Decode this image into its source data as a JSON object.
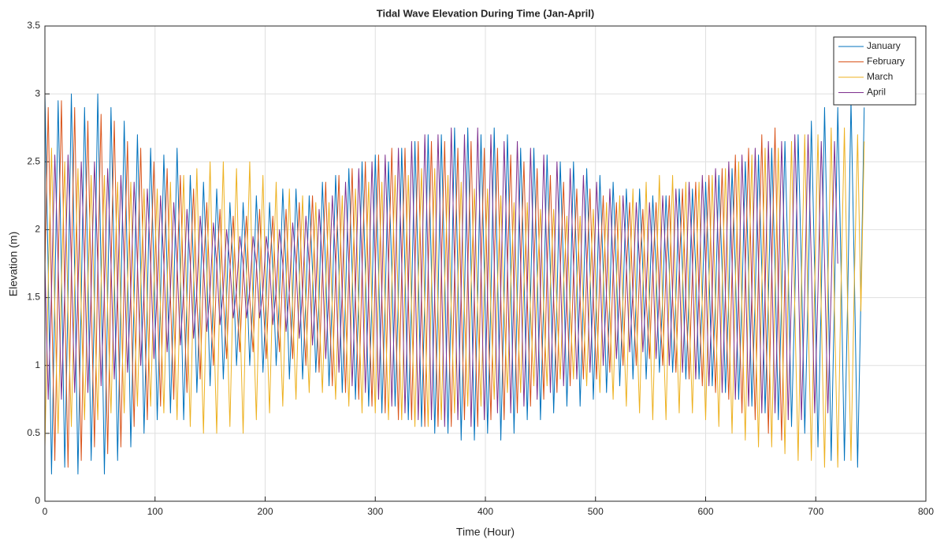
{
  "chart_data": {
    "type": "line",
    "title": "Tidal Wave Elevation During Time (Jan-April)",
    "x_label": "Time (Hour)",
    "y_label": "Elevation (m)",
    "xlim": [
      0,
      800
    ],
    "xticks": [
      0,
      100,
      200,
      300,
      400,
      500,
      600,
      700,
      800
    ],
    "ylim": [
      0,
      3.5
    ],
    "yticks": [
      0,
      0.5,
      1,
      1.5,
      2,
      2.5,
      3,
      3.5
    ],
    "grid": true,
    "legend": "upper-right",
    "x": [
      0,
      3,
      6,
      9,
      12,
      15,
      18,
      21,
      24,
      27,
      30,
      33,
      36,
      39,
      42,
      45,
      48,
      51,
      54,
      57,
      60,
      63,
      66,
      69,
      72,
      75,
      78,
      81,
      84,
      87,
      90,
      93,
      96,
      99,
      102,
      105,
      108,
      111,
      114,
      117,
      120,
      123,
      126,
      129,
      132,
      135,
      138,
      141,
      144,
      147,
      150,
      153,
      156,
      159,
      162,
      165,
      168,
      171,
      174,
      177,
      180,
      183,
      186,
      189,
      192,
      195,
      198,
      201,
      204,
      207,
      210,
      213,
      216,
      219,
      222,
      225,
      228,
      231,
      234,
      237,
      240,
      243,
      246,
      249,
      252,
      255,
      258,
      261,
      264,
      267,
      270,
      273,
      276,
      279,
      282,
      285,
      288,
      291,
      294,
      297,
      300,
      303,
      306,
      309,
      312,
      315,
      318,
      321,
      324,
      327,
      330,
      333,
      336,
      339,
      342,
      345,
      348,
      351,
      354,
      357,
      360,
      363,
      366,
      369,
      372,
      375,
      378,
      381,
      384,
      387,
      390,
      393,
      396,
      399,
      402,
      405,
      408,
      411,
      414,
      417,
      420,
      423,
      426,
      429,
      432,
      435,
      438,
      441,
      444,
      447,
      450,
      453,
      456,
      459,
      462,
      465,
      468,
      471,
      474,
      477,
      480,
      483,
      486,
      489,
      492,
      495,
      498,
      501,
      504,
      507,
      510,
      513,
      516,
      519,
      522,
      525,
      528,
      531,
      534,
      537,
      540,
      543,
      546,
      549,
      552,
      555,
      558,
      561,
      564,
      567,
      570,
      573,
      576,
      579,
      582,
      585,
      588,
      591,
      594,
      597,
      600,
      603,
      606,
      609,
      612,
      615,
      618,
      621,
      624,
      627,
      630,
      633,
      636,
      639,
      642,
      645,
      648,
      651,
      654,
      657,
      660,
      663,
      666,
      669,
      672,
      675,
      678,
      681,
      684,
      687,
      690,
      693,
      696,
      699,
      702,
      705,
      708,
      711,
      714,
      717,
      720,
      723,
      726,
      729,
      732,
      735,
      738,
      741,
      744
    ],
    "series": [
      {
        "name": "January",
        "color": "#0072BD",
        "values": [
          3,
          1.7,
          0.2,
          1.5,
          2.95,
          1.7,
          0.25,
          1.5,
          3,
          1.7,
          0.2,
          1.5,
          2.9,
          1.7,
          0.3,
          1.5,
          3,
          1.7,
          0.2,
          1.5,
          2.9,
          1.7,
          0.3,
          1.5,
          2.8,
          1.7,
          0.4,
          1.5,
          2.7,
          1.7,
          0.5,
          1.5,
          2.6,
          1.7,
          0.6,
          1.5,
          2.55,
          1.7,
          0.65,
          1.5,
          2.6,
          1.7,
          0.6,
          1.5,
          2.4,
          1.7,
          0.8,
          1.5,
          2.35,
          1.7,
          0.85,
          1.5,
          2.3,
          1.7,
          0.9,
          1.5,
          2.2,
          1.7,
          1,
          1.5,
          2.2,
          1.7,
          1,
          1.5,
          2.25,
          1.7,
          0.95,
          1.5,
          2.2,
          1.7,
          1,
          1.5,
          2.3,
          1.7,
          0.9,
          1.5,
          2.3,
          1.7,
          0.9,
          1.5,
          2.25,
          1.7,
          0.95,
          1.5,
          2.35,
          1.7,
          0.85,
          1.5,
          2.4,
          1.7,
          0.8,
          1.5,
          2.45,
          1.7,
          0.75,
          1.5,
          2.5,
          1.7,
          0.7,
          1.5,
          2.55,
          1.7,
          0.65,
          1.5,
          2.5,
          1.7,
          0.7,
          1.5,
          2.6,
          1.7,
          0.6,
          1.5,
          2.65,
          1.7,
          0.55,
          1.5,
          2.7,
          1.7,
          0.5,
          1.5,
          2.7,
          1.7,
          0.5,
          1.5,
          2.75,
          1.7,
          0.45,
          1.5,
          2.75,
          1.7,
          0.45,
          1.5,
          2.7,
          1.7,
          0.5,
          1.5,
          2.75,
          1.7,
          0.45,
          1.5,
          2.7,
          1.7,
          0.5,
          1.5,
          2.6,
          1.7,
          0.6,
          1.5,
          2.6,
          1.7,
          0.6,
          1.5,
          2.55,
          1.7,
          0.65,
          1.5,
          2.5,
          1.7,
          0.7,
          1.5,
          2.5,
          1.7,
          0.7,
          1.5,
          2.45,
          1.7,
          0.75,
          1.5,
          2.4,
          1.7,
          0.8,
          1.5,
          2.35,
          1.7,
          0.85,
          1.5,
          2.3,
          1.7,
          0.9,
          1.5,
          2.3,
          1.7,
          0.9,
          1.5,
          2.25,
          1.7,
          0.95,
          1.5,
          2.25,
          1.7,
          0.95,
          1.5,
          2.3,
          1.7,
          0.9,
          1.5,
          2.3,
          1.7,
          0.9,
          1.5,
          2.35,
          1.7,
          0.85,
          1.5,
          2.4,
          1.7,
          0.8,
          1.5,
          2.45,
          1.7,
          0.75,
          1.5,
          2.5,
          1.7,
          0.7,
          1.5,
          2.55,
          1.7,
          0.65,
          1.5,
          2.6,
          1.7,
          0.6,
          1.5,
          2.65,
          1.7,
          0.55,
          1.5,
          2.7,
          1.7,
          0.5,
          1.5,
          2.8,
          1.7,
          0.4,
          1.5,
          2.9,
          1.7,
          0.3,
          1.5,
          2.9,
          1.7,
          0.3,
          1.5,
          2.95,
          1.7,
          0.25,
          1.5,
          2.9
        ]
      },
      {
        "name": "February",
        "color": "#D95319",
        "values": [
          1.7,
          2.9,
          1.5,
          0.3,
          1.7,
          2.95,
          1.5,
          0.25,
          1.7,
          2.9,
          1.5,
          0.3,
          1.7,
          2.8,
          1.5,
          0.4,
          1.7,
          2.85,
          1.5,
          0.35,
          1.7,
          2.8,
          1.5,
          0.4,
          1.7,
          2.65,
          1.5,
          0.55,
          1.7,
          2.6,
          1.5,
          0.6,
          1.7,
          2.5,
          1.5,
          0.7,
          1.7,
          2.45,
          1.5,
          0.75,
          1.7,
          2.4,
          1.5,
          0.8,
          1.7,
          2.3,
          1.5,
          0.9,
          1.7,
          2.2,
          1.5,
          1,
          1.7,
          2.15,
          1.5,
          1.05,
          1.7,
          2.1,
          1.5,
          1.1,
          1.7,
          2.1,
          1.5,
          1.1,
          1.7,
          2.15,
          1.5,
          1.05,
          1.7,
          2.1,
          1.5,
          1.1,
          1.7,
          2.15,
          1.5,
          1.05,
          1.7,
          2.2,
          1.5,
          1,
          1.7,
          2.25,
          1.5,
          0.95,
          1.7,
          2.35,
          1.5,
          0.85,
          1.7,
          2.4,
          1.5,
          0.8,
          1.7,
          2.45,
          1.5,
          0.75,
          1.7,
          2.5,
          1.5,
          0.7,
          1.7,
          2.55,
          1.5,
          0.65,
          1.7,
          2.6,
          1.5,
          0.6,
          1.7,
          2.6,
          1.5,
          0.6,
          1.7,
          2.65,
          1.5,
          0.55,
          1.7,
          2.65,
          1.5,
          0.55,
          1.7,
          2.65,
          1.5,
          0.55,
          1.7,
          2.6,
          1.5,
          0.6,
          1.7,
          2.65,
          1.5,
          0.55,
          1.7,
          2.6,
          1.5,
          0.6,
          1.7,
          2.6,
          1.5,
          0.6,
          1.7,
          2.55,
          1.5,
          0.65,
          1.7,
          2.5,
          1.5,
          0.7,
          1.7,
          2.45,
          1.5,
          0.75,
          1.7,
          2.4,
          1.5,
          0.8,
          1.7,
          2.35,
          1.5,
          0.85,
          1.7,
          2.3,
          1.5,
          0.9,
          1.7,
          2.3,
          1.5,
          0.9,
          1.7,
          2.25,
          1.5,
          0.95,
          1.7,
          2.2,
          1.5,
          1,
          1.7,
          2.2,
          1.5,
          1,
          1.7,
          2.15,
          1.5,
          1.05,
          1.7,
          2.2,
          1.5,
          1,
          1.7,
          2.25,
          1.5,
          0.95,
          1.7,
          2.3,
          1.5,
          0.9,
          1.7,
          2.35,
          1.5,
          0.85,
          1.7,
          2.4,
          1.5,
          0.8,
          1.7,
          2.45,
          1.5,
          0.75,
          1.7,
          2.55,
          1.5,
          0.65,
          1.7,
          2.6,
          1.5,
          0.6,
          1.7,
          2.7,
          1.5,
          0.5,
          1.7,
          2.75,
          1.5,
          0.45,
          1.7,
          null,
          null,
          null,
          null,
          null,
          null,
          null,
          null,
          null,
          null,
          null,
          null,
          null,
          null,
          null,
          null,
          null,
          null,
          null,
          null,
          null,
          null,
          null,
          null
        ]
      },
      {
        "name": "March",
        "color": "#EDB120",
        "values": [
          0.4,
          1.6,
          2.6,
          1.4,
          0.5,
          1.6,
          2.5,
          1.4,
          0.55,
          1.6,
          2.45,
          1.4,
          0.6,
          1.6,
          2.4,
          1.4,
          0.6,
          1.6,
          2.4,
          1.4,
          0.65,
          1.6,
          2.35,
          1.4,
          0.65,
          1.6,
          2.35,
          1.4,
          0.7,
          1.6,
          2.3,
          1.4,
          0.7,
          1.6,
          2.3,
          1.4,
          0.65,
          1.6,
          2.35,
          1.4,
          0.6,
          1.6,
          2.4,
          1.4,
          0.55,
          1.6,
          2.45,
          1.4,
          0.5,
          1.6,
          2.5,
          1.4,
          0.5,
          1.6,
          2.5,
          1.4,
          0.55,
          1.6,
          2.45,
          1.4,
          0.5,
          1.6,
          2.5,
          1.4,
          0.6,
          1.6,
          2.4,
          1.4,
          0.65,
          1.6,
          2.35,
          1.4,
          0.7,
          1.6,
          2.3,
          1.4,
          0.75,
          1.6,
          2.25,
          1.4,
          0.8,
          1.6,
          2.2,
          1.4,
          0.8,
          1.6,
          2.2,
          1.4,
          0.75,
          1.6,
          2.25,
          1.4,
          0.7,
          1.6,
          2.3,
          1.4,
          0.65,
          1.6,
          2.35,
          1.4,
          0.65,
          1.6,
          2.35,
          1.4,
          0.6,
          1.6,
          2.4,
          1.4,
          0.6,
          1.6,
          2.4,
          1.4,
          0.55,
          1.6,
          2.45,
          1.4,
          0.55,
          1.6,
          2.45,
          1.4,
          0.6,
          1.6,
          2.4,
          1.4,
          0.65,
          1.6,
          2.35,
          1.4,
          0.7,
          1.6,
          2.3,
          1.4,
          0.7,
          1.6,
          2.3,
          1.4,
          0.75,
          1.6,
          2.25,
          1.4,
          0.8,
          1.6,
          2.2,
          1.4,
          0.8,
          1.6,
          2.2,
          1.4,
          0.85,
          1.6,
          2.15,
          1.4,
          0.85,
          1.6,
          2.15,
          1.4,
          0.9,
          1.6,
          2.1,
          1.4,
          0.9,
          1.6,
          2.1,
          1.4,
          0.85,
          1.6,
          2.15,
          1.4,
          0.8,
          1.6,
          2.2,
          1.4,
          0.75,
          1.6,
          2.25,
          1.4,
          0.7,
          1.6,
          2.3,
          1.4,
          0.65,
          1.6,
          2.35,
          1.4,
          0.6,
          1.6,
          2.4,
          1.4,
          0.6,
          1.6,
          2.4,
          1.4,
          0.65,
          1.6,
          2.35,
          1.4,
          0.65,
          1.6,
          2.35,
          1.4,
          0.6,
          1.6,
          2.4,
          1.4,
          0.55,
          1.6,
          2.45,
          1.4,
          0.5,
          1.6,
          2.5,
          1.4,
          0.45,
          1.6,
          2.55,
          1.4,
          0.4,
          1.6,
          2.6,
          1.4,
          0.4,
          1.6,
          2.6,
          1.4,
          0.35,
          1.6,
          2.65,
          1.4,
          0.3,
          1.6,
          2.7,
          1.4,
          0.3,
          1.6,
          2.7,
          1.4,
          0.25,
          1.6,
          2.75,
          1.4,
          0.25,
          1.6,
          2.75,
          1.4,
          0.3,
          1.6,
          2.7,
          1.4,
          2.65
        ]
      },
      {
        "name": "April",
        "color": "#7E2F8E",
        "values": [
          1.75,
          0.75,
          1.55,
          2.55,
          1.75,
          0.75,
          1.55,
          2.55,
          1.75,
          0.8,
          1.55,
          2.5,
          1.75,
          0.8,
          1.55,
          2.5,
          1.75,
          0.85,
          1.55,
          2.45,
          1.75,
          0.9,
          1.55,
          2.4,
          1.75,
          0.95,
          1.55,
          2.35,
          1.75,
          1,
          1.55,
          2.3,
          1.75,
          1.05,
          1.55,
          2.25,
          1.75,
          1.1,
          1.55,
          2.2,
          1.75,
          1.15,
          1.55,
          2.15,
          1.75,
          1.2,
          1.55,
          2.1,
          1.75,
          1.25,
          1.55,
          2.05,
          1.75,
          1.3,
          1.55,
          2,
          1.75,
          1.35,
          1.55,
          1.95,
          1.75,
          1.35,
          1.55,
          1.95,
          1.75,
          1.35,
          1.55,
          1.95,
          1.75,
          1.3,
          1.55,
          2,
          1.75,
          1.25,
          1.55,
          2.05,
          1.75,
          1.2,
          1.55,
          2.1,
          1.75,
          1.15,
          1.55,
          2.15,
          1.75,
          1.05,
          1.55,
          2.25,
          1.75,
          0.95,
          1.55,
          2.35,
          1.75,
          0.85,
          1.55,
          2.45,
          1.75,
          0.8,
          1.55,
          2.5,
          1.75,
          0.75,
          1.55,
          2.55,
          1.75,
          0.7,
          1.55,
          2.6,
          1.75,
          0.65,
          1.55,
          2.65,
          1.75,
          0.6,
          1.55,
          2.7,
          1.75,
          0.6,
          1.55,
          2.7,
          1.75,
          0.55,
          1.55,
          2.75,
          1.75,
          0.6,
          1.55,
          2.7,
          1.75,
          0.55,
          1.55,
          2.75,
          1.75,
          0.6,
          1.55,
          2.7,
          1.75,
          0.65,
          1.55,
          2.65,
          1.75,
          0.65,
          1.55,
          2.65,
          1.75,
          0.7,
          1.55,
          2.6,
          1.75,
          0.75,
          1.55,
          2.55,
          1.75,
          0.8,
          1.55,
          2.5,
          1.75,
          0.85,
          1.55,
          2.45,
          1.75,
          0.9,
          1.55,
          2.4,
          1.75,
          0.95,
          1.55,
          2.35,
          1.75,
          1,
          1.55,
          2.3,
          1.75,
          1.05,
          1.55,
          2.25,
          1.75,
          1.1,
          1.55,
          2.2,
          1.75,
          1.1,
          1.55,
          2.2,
          1.75,
          1.05,
          1.55,
          2.25,
          1.75,
          1,
          1.55,
          2.3,
          1.75,
          0.95,
          1.55,
          2.35,
          1.75,
          0.9,
          1.55,
          2.4,
          1.75,
          0.85,
          1.55,
          2.45,
          1.75,
          0.8,
          1.55,
          2.5,
          1.75,
          0.75,
          1.55,
          2.55,
          1.75,
          0.7,
          1.55,
          2.6,
          1.75,
          0.65,
          1.55,
          2.65,
          1.75,
          0.65,
          1.55,
          2.65,
          1.75,
          0.6,
          1.55,
          2.7,
          1.75,
          0.6,
          1.55,
          2.7,
          1.75,
          0.65,
          1.55,
          2.65,
          1.75,
          0.65,
          1.55,
          2.65,
          1.75,
          null,
          null,
          null,
          null,
          null,
          null,
          null,
          null
        ]
      }
    ]
  }
}
